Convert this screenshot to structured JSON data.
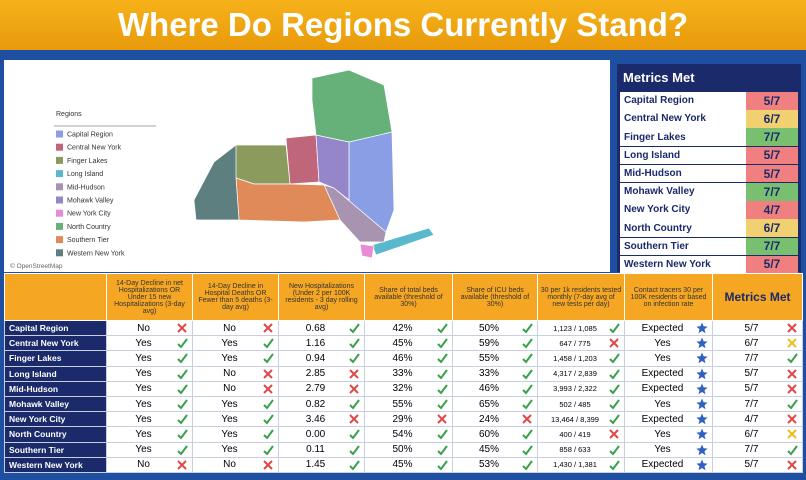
{
  "title": "Where Do Regions Currently Stand?",
  "map": {
    "legend_title": "Regions",
    "credit": "© OpenStreetMap",
    "legend": [
      {
        "name": "Capital Region",
        "color": "#8a9ee6"
      },
      {
        "name": "Central New York",
        "color": "#c0667a"
      },
      {
        "name": "Finger Lakes",
        "color": "#8b9a5d"
      },
      {
        "name": "Long Island",
        "color": "#5ab8cc"
      },
      {
        "name": "Mid-Hudson",
        "color": "#a894b0"
      },
      {
        "name": "Mohawk Valley",
        "color": "#9486c9"
      },
      {
        "name": "New York City",
        "color": "#e88ad8"
      },
      {
        "name": "North Country",
        "color": "#66b07a"
      },
      {
        "name": "Southern Tier",
        "color": "#e08a5a"
      },
      {
        "name": "Western New York",
        "color": "#5e7f80"
      }
    ]
  },
  "metrics": {
    "title": "Metrics Met",
    "rows": [
      {
        "name": "Capital Region",
        "score": "5/7",
        "color": "#f08080"
      },
      {
        "name": "Central New York",
        "score": "6/7",
        "color": "#f0d070"
      },
      {
        "name": "Finger Lakes",
        "score": "7/7",
        "color": "#78c070"
      },
      {
        "name": "Long Island",
        "score": "5/7",
        "color": "#f08080"
      },
      {
        "name": "Mid-Hudson",
        "score": "5/7",
        "color": "#f08080"
      },
      {
        "name": "Mohawk Valley",
        "score": "7/7",
        "color": "#78c070"
      },
      {
        "name": "New York City",
        "score": "4/7",
        "color": "#f08080"
      },
      {
        "name": "North Country",
        "score": "6/7",
        "color": "#f0d070"
      },
      {
        "name": "Southern Tier",
        "score": "7/7",
        "color": "#78c070"
      },
      {
        "name": "Western New York",
        "score": "5/7",
        "color": "#f08080"
      }
    ]
  },
  "table": {
    "headers": [
      "14-Day Decline in net Hospitalizations OR Under 15 new Hospitalizations (3-day avg)",
      "14-Day Decline in Hospital Deaths OR Fewer than 5 deaths (3-day avg)",
      "New Hospitalizations (Under 2 per 100K residents - 3 day rolling avg)",
      "Share of total beds available (threshold of 30%)",
      "Share of ICU beds available (threshold of 30%)",
      "30 per 1k residents tested monthly (7-day avg of new tests per day)",
      "Contact tracers 30 per 100K residents or based on infection rate",
      "Metrics Met"
    ],
    "rows": [
      {
        "region": "Capital Region",
        "cells": [
          "No",
          "No",
          "0.68",
          "42%",
          "50%",
          "1,123 / 1,085",
          "Expected",
          "5/7"
        ],
        "icons": [
          "cross",
          "cross",
          "check",
          "check",
          "check",
          "check",
          "star",
          "cross"
        ]
      },
      {
        "region": "Central New York",
        "cells": [
          "Yes",
          "Yes",
          "1.16",
          "45%",
          "59%",
          "647 / 775",
          "Yes",
          "6/7"
        ],
        "icons": [
          "check",
          "check",
          "check",
          "check",
          "check",
          "cross",
          "star",
          "caution"
        ]
      },
      {
        "region": "Finger Lakes",
        "cells": [
          "Yes",
          "Yes",
          "0.94",
          "46%",
          "55%",
          "1,458 / 1,203",
          "Yes",
          "7/7"
        ],
        "icons": [
          "check",
          "check",
          "check",
          "check",
          "check",
          "check",
          "star",
          "check"
        ]
      },
      {
        "region": "Long Island",
        "cells": [
          "Yes",
          "No",
          "2.85",
          "33%",
          "33%",
          "4,317 / 2,839",
          "Expected",
          "5/7"
        ],
        "icons": [
          "check",
          "cross",
          "cross",
          "check",
          "check",
          "check",
          "star",
          "cross"
        ]
      },
      {
        "region": "Mid-Hudson",
        "cells": [
          "Yes",
          "No",
          "2.79",
          "32%",
          "46%",
          "3,993 / 2,322",
          "Expected",
          "5/7"
        ],
        "icons": [
          "check",
          "cross",
          "cross",
          "check",
          "check",
          "check",
          "star",
          "cross"
        ]
      },
      {
        "region": "Mohawk Valley",
        "cells": [
          "Yes",
          "Yes",
          "0.82",
          "55%",
          "65%",
          "502 / 485",
          "Yes",
          "7/7"
        ],
        "icons": [
          "check",
          "check",
          "check",
          "check",
          "check",
          "check",
          "star",
          "check"
        ]
      },
      {
        "region": "New York City",
        "cells": [
          "Yes",
          "Yes",
          "3.46",
          "29%",
          "24%",
          "13,464 / 8,399",
          "Expected",
          "4/7"
        ],
        "icons": [
          "check",
          "check",
          "cross",
          "cross",
          "cross",
          "check",
          "star",
          "cross"
        ]
      },
      {
        "region": "North Country",
        "cells": [
          "Yes",
          "Yes",
          "0.00",
          "54%",
          "60%",
          "400 / 419",
          "Yes",
          "6/7"
        ],
        "icons": [
          "check",
          "check",
          "check",
          "check",
          "check",
          "cross",
          "star",
          "caution"
        ]
      },
      {
        "region": "Southern Tier",
        "cells": [
          "Yes",
          "Yes",
          "0.11",
          "50%",
          "45%",
          "858 / 633",
          "Yes",
          "7/7"
        ],
        "icons": [
          "check",
          "check",
          "check",
          "check",
          "check",
          "check",
          "star",
          "check"
        ]
      },
      {
        "region": "Western New York",
        "cells": [
          "No",
          "No",
          "1.45",
          "45%",
          "53%",
          "1,430 / 1,381",
          "Expected",
          "5/7"
        ],
        "icons": [
          "cross",
          "cross",
          "check",
          "check",
          "check",
          "check",
          "star",
          "cross"
        ]
      }
    ]
  }
}
